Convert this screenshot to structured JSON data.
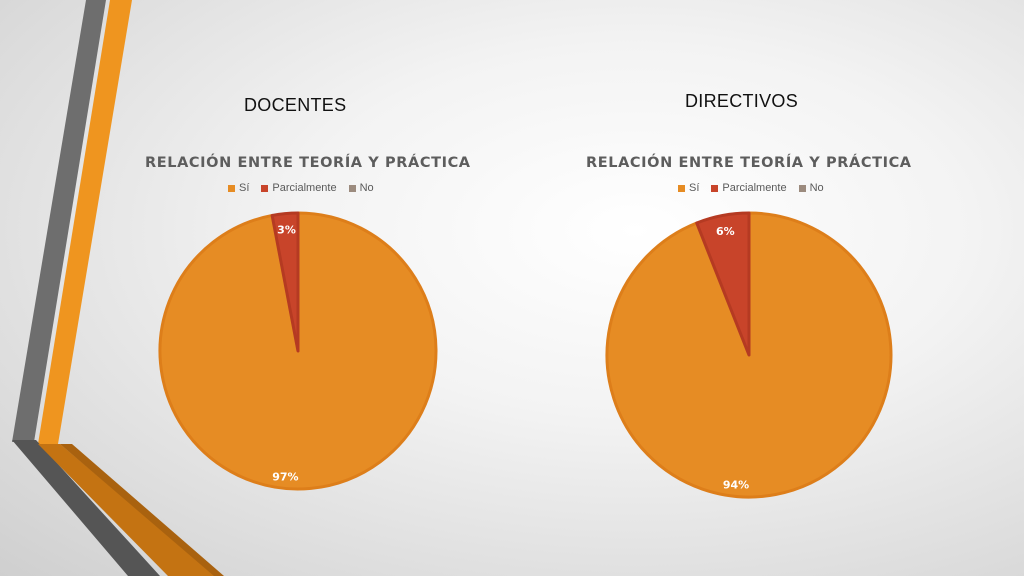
{
  "slide": {
    "left_heading": "DOCENTES",
    "right_heading": "DIRECTIVOS"
  },
  "colors": {
    "si": "#E68C24",
    "parcialmente": "#C8442A",
    "no": "#9C8B7E",
    "deco_orange": "#EF951F",
    "deco_gray": "#6E6E6E",
    "slice_border": "#DD7E1A"
  },
  "chart_data": [
    {
      "type": "pie",
      "title": "RELACIÓN ENTRE TEORÍA Y PRÁCTICA",
      "legend": [
        "Sí",
        "Parcialmente",
        "No"
      ],
      "legend_position": "top",
      "categories": [
        "Sí",
        "Parcialmente",
        "No"
      ],
      "values": [
        97,
        3,
        0
      ],
      "data_labels": [
        "97%",
        "3%",
        ""
      ]
    },
    {
      "type": "pie",
      "title": "RELACIÓN ENTRE TEORÍA Y PRÁCTICA",
      "legend": [
        "Sí",
        "Parcialmente",
        "No"
      ],
      "legend_position": "top",
      "categories": [
        "Sí",
        "Parcialmente",
        "No"
      ],
      "values": [
        94,
        6,
        0
      ],
      "data_labels": [
        "94%",
        "6%",
        ""
      ]
    }
  ]
}
